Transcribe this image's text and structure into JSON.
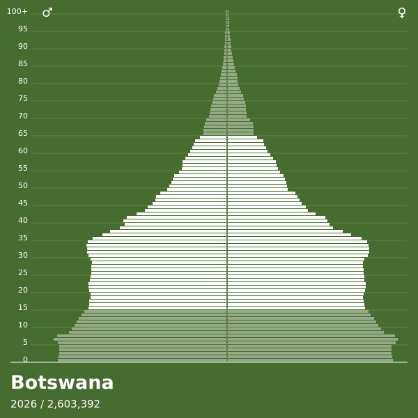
{
  "chart_data": {
    "type": "pyramid",
    "title": "Botswana",
    "subtitle": "2026 / 2,603,392",
    "categories": [
      "0",
      null,
      null,
      null,
      null,
      "5",
      null,
      null,
      null,
      null,
      "10",
      null,
      null,
      null,
      null,
      "15",
      null,
      null,
      null,
      null,
      "20",
      null,
      null,
      null,
      null,
      "25",
      null,
      null,
      null,
      null,
      "30",
      null,
      null,
      null,
      null,
      "35",
      null,
      null,
      null,
      null,
      "40",
      null,
      null,
      null,
      null,
      "45",
      null,
      null,
      null,
      null,
      "50",
      null,
      null,
      null,
      null,
      "55",
      null,
      null,
      null,
      null,
      "60",
      null,
      null,
      null,
      null,
      "65",
      null,
      null,
      null,
      null,
      "70",
      null,
      null,
      null,
      null,
      "75",
      null,
      null,
      null,
      null,
      "80",
      null,
      null,
      null,
      null,
      "85",
      null,
      null,
      null,
      null,
      "90",
      null,
      null,
      null,
      null,
      "95",
      null,
      null,
      null,
      null,
      "100+"
    ],
    "series": [
      {
        "name": "♂",
        "values": [
          242,
          241,
          240,
          240,
          240,
          242,
          248,
          243,
          226,
          222,
          218,
          215,
          212,
          208,
          204,
          198,
          197,
          197,
          195,
          195,
          197,
          198,
          198,
          196,
          195,
          194,
          194,
          194,
          193,
          195,
          198,
          200,
          200,
          201,
          199,
          192,
          178,
          167,
          153,
          146,
          148,
          143,
          129,
          117,
          113,
          106,
          102,
          101,
          95,
          85,
          82,
          79,
          77,
          75,
          68,
          64,
          63,
          63,
          59,
          55,
          52,
          49,
          47,
          45,
          38,
          33,
          33,
          32,
          31,
          29,
          25,
          24,
          23,
          22,
          20,
          19,
          18,
          15,
          13,
          11,
          10,
          9,
          8,
          7,
          6,
          5,
          4,
          4,
          3,
          3,
          3,
          2,
          2,
          2,
          2,
          1,
          1,
          1,
          1,
          1,
          1
        ]
      },
      {
        "name": "♀",
        "values": [
          237,
          236,
          235,
          235,
          235,
          241,
          244,
          240,
          224,
          220,
          216,
          213,
          210,
          205,
          202,
          197,
          196,
          195,
          194,
          195,
          197,
          198,
          198,
          196,
          196,
          195,
          195,
          194,
          194,
          196,
          201,
          203,
          203,
          202,
          200,
          192,
          177,
          165,
          151,
          146,
          143,
          140,
          126,
          115,
          112,
          106,
          103,
          100,
          97,
          86,
          85,
          84,
          82,
          80,
          75,
          72,
          70,
          69,
          65,
          61,
          57,
          55,
          52,
          51,
          42,
          37,
          37,
          37,
          36,
          32,
          27,
          27,
          26,
          26,
          25,
          23,
          22,
          19,
          17,
          15,
          14,
          14,
          13,
          11,
          10,
          9,
          8,
          7,
          6,
          5,
          5,
          4,
          4,
          3,
          3,
          2,
          2,
          2,
          2,
          1,
          1
        ]
      }
    ],
    "band_colors": [
      {
        "start": 0,
        "color": "#93aa86"
      },
      {
        "start": 15,
        "color": "#ffffff"
      },
      {
        "start": 65,
        "color": "#93aa86"
      }
    ],
    "xlim": [
      0,
      310
    ],
    "grid": true
  }
}
